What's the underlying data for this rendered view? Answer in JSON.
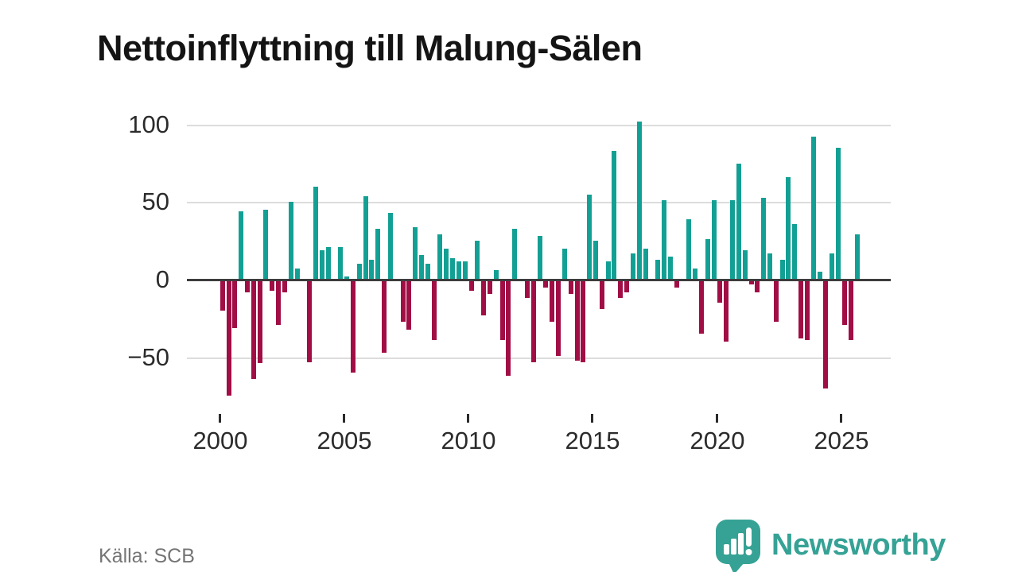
{
  "title": "Nettoinflyttning till Malung-Sälen",
  "source": "Källa: SCB",
  "branding": {
    "logo_text": "Newsworthy",
    "logo_color": "#35a295",
    "logo_icon": "speech-bubble-with-bar-chart-and-exclamation"
  },
  "chart_data": {
    "type": "bar",
    "title": "Nettoinflyttning till Malung-Sälen",
    "x_period": "quarterly",
    "x_start": "2000 Q1",
    "x_end": "2025 Q3",
    "x_ticks": [
      "2000",
      "2005",
      "2010",
      "2015",
      "2020",
      "2025"
    ],
    "y_ticks": [
      100,
      50,
      0,
      -50
    ],
    "y_tick_labels": [
      "100",
      "50",
      "0",
      "−50"
    ],
    "ylim": [
      -80,
      110
    ],
    "grid": true,
    "legend": false,
    "zero_line": true,
    "colors": {
      "positive": "#13a094",
      "negative": "#a10d45"
    },
    "values": [
      -19,
      -74,
      -30,
      44,
      -7,
      -63,
      -53,
      45,
      -6,
      -28,
      -7,
      50,
      7,
      0,
      -52,
      60,
      19,
      21,
      0,
      21,
      2,
      -59,
      10,
      54,
      13,
      33,
      -46,
      43,
      0,
      -26,
      -31,
      34,
      16,
      10,
      -38,
      29,
      20,
      14,
      12,
      12,
      -6,
      25,
      -22,
      -8,
      6,
      -38,
      -61,
      33,
      0,
      -11,
      -52,
      28,
      -4,
      -26,
      -48,
      20,
      -8,
      -51,
      -52,
      55,
      25,
      -18,
      12,
      83,
      -11,
      -7,
      17,
      102,
      20,
      0,
      13,
      51,
      15,
      -4,
      0,
      39,
      7,
      -34,
      26,
      51,
      -14,
      -39,
      51,
      75,
      19,
      -2,
      -7,
      53,
      17,
      -26,
      13,
      66,
      36,
      -37,
      -38,
      92,
      5,
      -69,
      17,
      85,
      -28,
      -38,
      29
    ]
  }
}
